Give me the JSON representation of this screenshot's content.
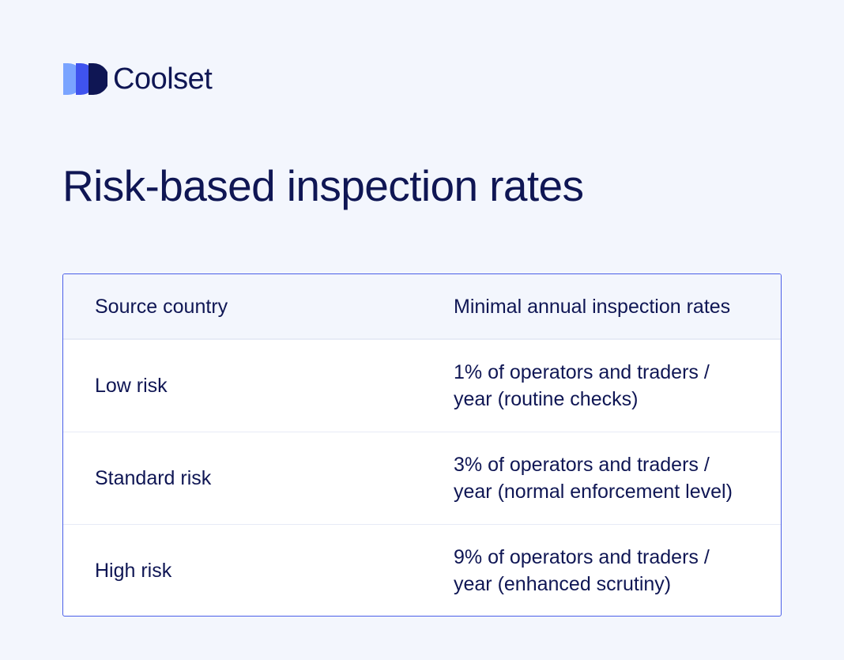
{
  "brand": {
    "name": "Coolset",
    "mark_colors": [
      "#7aa4ff",
      "#3f53ee",
      "#0f1654"
    ]
  },
  "page": {
    "title": "Risk-based inspection rates"
  },
  "table": {
    "headers": [
      "Source country",
      "Minimal annual inspection rates"
    ],
    "rows": [
      {
        "risk": "Low risk",
        "rate_line1": "1% of operators and traders /",
        "rate_line2": "year (routine checks)"
      },
      {
        "risk": "Standard risk",
        "rate_line1": "3% of operators and traders /",
        "rate_line2": "year (normal enforcement level)"
      },
      {
        "risk": "High risk",
        "rate_line1": "9% of operators and traders /",
        "rate_line2": "year (enhanced scrutiny)"
      }
    ]
  },
  "colors": {
    "background": "#f3f6fd",
    "text": "#0f1654",
    "table_border": "#4b5fe8",
    "row_divider": "#e7ebf6"
  }
}
